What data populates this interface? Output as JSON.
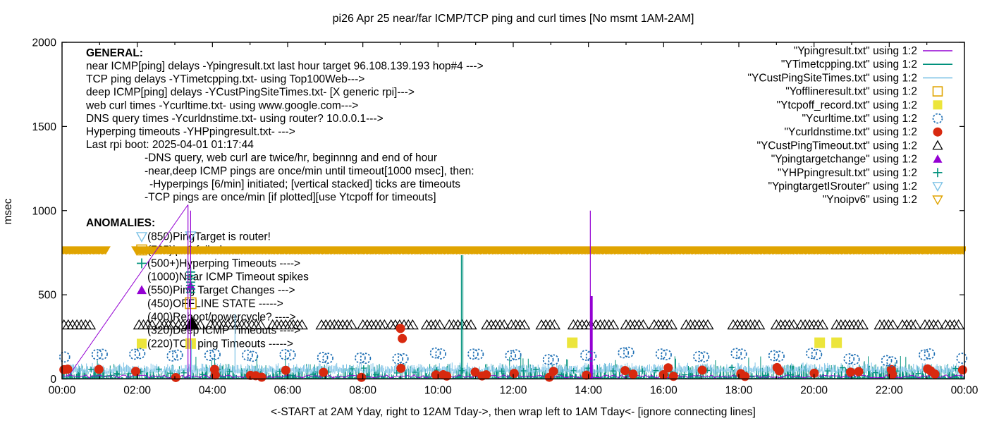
{
  "title": "pi26 Apr 25  near/far ICMP/TCP ping and curl times [No msmt 1AM-2AM]",
  "axis": {
    "ylabel": "msec",
    "xlabel": "<-START at 2AM Yday, right to 12AM Tday->, then wrap left to 1AM Tday<- [ignore connecting lines]",
    "y_ticks": [
      0,
      500,
      1000,
      1500,
      2000
    ],
    "x_tick_labels": [
      "00:00",
      "02:00",
      "04:00",
      "06:00",
      "08:00",
      "10:00",
      "12:00",
      "14:00",
      "16:00",
      "18:00",
      "20:00",
      "22:00",
      "00:00"
    ],
    "ylim": [
      0,
      2000
    ],
    "xlim_hours": [
      0,
      24
    ],
    "grid": false
  },
  "colors": {
    "purple": "#9400d3",
    "teal": "#00917c",
    "skyblue": "#7ec3e6",
    "orange": "#e0a400",
    "yellow": "#ece53b",
    "blue": "#1e6fb4",
    "red": "#d8290f",
    "black": "#000000"
  },
  "legend": {
    "position": "top-right",
    "items": [
      {
        "label": "\"Ypingresult.txt\" using 1:2",
        "marker": "line",
        "color": "purple"
      },
      {
        "label": "\"YTimetcpping.txt\" using 1:2",
        "marker": "line",
        "color": "teal"
      },
      {
        "label": "\"YCustPingSiteTimes.txt\" using 1:2",
        "marker": "line",
        "color": "skyblue"
      },
      {
        "label": "\"Yofflineresult.txt\" using 1:2",
        "marker": "square-open",
        "color": "orange"
      },
      {
        "label": "\"Ytcpoff_record.txt\" using 1:2",
        "marker": "square-fill",
        "color": "yellow"
      },
      {
        "label": "\"Ycurltime.txt\" using 1:2",
        "marker": "circle-open",
        "color": "blue"
      },
      {
        "label": "\"Ycurldnstime.txt\" using 1:2",
        "marker": "circle-fill",
        "color": "red"
      },
      {
        "label": "\"YCustPingTimeout.txt\" using 1:2",
        "marker": "triangle-open",
        "color": "black"
      },
      {
        "label": "\"Ypingtargetchange\" using 1:2",
        "marker": "triangle-fill",
        "color": "purple"
      },
      {
        "label": "\"YHPpingresult.txt\" using 1:2",
        "marker": "plus",
        "color": "teal"
      },
      {
        "label": "\"YpingtargetISrouter\" using 1:2",
        "marker": "tri-down-open",
        "color": "skyblue"
      },
      {
        "label": "\"Ynoipv6\" using 1:2",
        "marker": "tri-down-open",
        "color": "orange"
      }
    ]
  },
  "notes": {
    "general_title": "GENERAL:",
    "general": [
      {
        "text": "near ICMP[ping] delays -Ypingresult.txt last hour target 96.108.139.193 hop#4 --->",
        "indent": 0
      },
      {
        "text": "TCP ping delays -YTimetcpping.txt- using Top100Web--->",
        "indent": 0
      },
      {
        "text": "deep ICMP[ping] delays -YCustPingSiteTimes.txt- [X generic rpi]--->",
        "indent": 0
      },
      {
        "text": "web curl times -Ycurltime.txt- using www.google.com--->",
        "indent": 0
      },
      {
        "text": "DNS query times -Ycurldnstime.txt- using router? 10.0.0.1--->",
        "indent": 0
      },
      {
        "text": "Hyperping timeouts -YHPpingresult.txt- --->",
        "indent": 0
      },
      {
        "text": "Last rpi boot: 2025-04-01 01:17:44",
        "indent": 0
      },
      {
        "text": "-DNS query, web curl are twice/hr, beginnng and end of hour",
        "indent": 1
      },
      {
        "text": "-near,deep ICMP pings are once/min until timeout[1000 msec], then:",
        "indent": 1
      },
      {
        "text": "-Hyperpings [6/min] initiated; [vertical stacked] ticks are timeouts",
        "indent": 2
      },
      {
        "text": "-TCP pings are once/min [if plotted][use Ytcpoff for timeouts]",
        "indent": 1
      }
    ],
    "anomalies_title": "ANOMALIES:",
    "anomalies": [
      {
        "icon": "tri-down-open",
        "color": "skyblue",
        "text": "(850)PingTarget is router!"
      },
      {
        "icon": "square-open",
        "color": "orange",
        "text": "(765)ipv6 failed"
      },
      {
        "icon": "plus",
        "color": "teal",
        "text": "(500+)Hyperping Timeouts ---->"
      },
      {
        "icon": null,
        "color": null,
        "text": "(1000)Near ICMP Timeout spikes"
      },
      {
        "icon": "triangle-fill",
        "color": "purple",
        "text": "(550)Ping Target Changes --->"
      },
      {
        "icon": null,
        "color": null,
        "text": "(450)OFFLINE STATE ----->"
      },
      {
        "icon": null,
        "color": null,
        "text": "(400)Reboot/powercycle? ---->"
      },
      {
        "icon": null,
        "color": null,
        "text": "(320)Deep ICMP Timeouts ---->"
      },
      {
        "icon": "square-fill",
        "color": "yellow",
        "text": "(220)TCP ping Timeouts ----->"
      }
    ]
  },
  "chart_data": {
    "type": "scatter",
    "x_unit": "time of day (hours, 00:00-24:00)",
    "y_unit": "msec",
    "series": [
      {
        "name": "Ypingresult.txt",
        "desc": "near ICMP ping delays",
        "style": "line",
        "color": "purple",
        "baseline_range": [
          6,
          24
        ],
        "spikes": [
          {
            "x": 3.35,
            "y": 1035
          },
          {
            "x": 3.42,
            "y": 1000
          },
          {
            "x": 14.05,
            "y": 1000
          },
          {
            "x": 14.08,
            "y": 492,
            "thick": true
          }
        ],
        "connect_line": [
          [
            0.15,
            10
          ],
          [
            3.35,
            1035
          ]
        ]
      },
      {
        "name": "YTimetcpping.txt",
        "desc": "TCP ping delays",
        "style": "line",
        "color": "teal",
        "baseline_range": [
          5,
          90
        ],
        "spikes": [
          {
            "x": 10.62,
            "y": 735
          },
          {
            "x": 10.66,
            "y": 735
          }
        ],
        "connect_line": [
          [
            1.05,
            15
          ],
          [
            2.1,
            40
          ]
        ]
      },
      {
        "name": "YCustPingSiteTimes.txt",
        "desc": "deep ICMP ping delays",
        "style": "line",
        "color": "skyblue",
        "baseline_range": [
          28,
          95
        ],
        "spikes": [
          {
            "x": 3.44,
            "y": 230
          },
          {
            "x": 4.6,
            "y": 385
          }
        ]
      },
      {
        "name": "Yofflineresult.txt",
        "desc": "offline state",
        "style": "square-open",
        "color": "orange",
        "points": [
          {
            "x": 3.42,
            "y": 450
          }
        ]
      },
      {
        "name": "Ytcpoff_record.txt",
        "desc": "TCP ping timeouts",
        "style": "square-fill",
        "color": "yellow",
        "points": [
          {
            "x": 3.42,
            "y": 210
          },
          {
            "x": 13.57,
            "y": 215
          },
          {
            "x": 20.15,
            "y": 215
          },
          {
            "x": 20.6,
            "y": 215
          }
        ]
      },
      {
        "name": "Ycurltime.txt",
        "desc": "web curl times, twice per hour",
        "style": "circle-open",
        "color": "blue",
        "schedule": "twice/hr at begin+end of hour",
        "y_range": [
          105,
          155
        ],
        "outliers": []
      },
      {
        "name": "Ycurldnstime.txt",
        "desc": "DNS query times, twice per hour",
        "style": "circle-fill",
        "color": "red",
        "schedule": "twice/hr at begin+end of hour",
        "y_range": [
          8,
          68
        ],
        "outliers": [
          {
            "x": 9.0,
            "y": 300
          },
          {
            "x": 9.05,
            "y": 240
          }
        ]
      },
      {
        "name": "YCustPingTimeout.txt",
        "desc": "deep ICMP timeouts plotted at 320",
        "style": "triangle-open",
        "color": "black",
        "y": 320,
        "step_hours": 0.115,
        "clusters": [
          [
            0.05,
            0.8
          ],
          [
            2.05,
            2.5
          ],
          [
            2.6,
            3.05
          ],
          [
            3.1,
            3.7
          ],
          [
            3.95,
            4.45
          ],
          [
            4.55,
            4.95
          ],
          [
            5.05,
            5.35
          ],
          [
            5.6,
            6.1
          ],
          [
            6.15,
            6.45
          ],
          [
            6.9,
            7.3
          ],
          [
            7.35,
            7.7
          ],
          [
            8.0,
            8.6
          ],
          [
            8.75,
            9.4
          ],
          [
            9.7,
            10.15
          ],
          [
            10.3,
            10.9
          ],
          [
            11.3,
            11.85
          ],
          [
            11.95,
            12.4
          ],
          [
            12.75,
            13.2
          ],
          [
            13.6,
            14.1
          ],
          [
            14.2,
            14.7
          ],
          [
            15.0,
            15.5
          ],
          [
            15.75,
            16.3
          ],
          [
            16.6,
            17.2
          ],
          [
            17.85,
            18.55
          ],
          [
            19.0,
            19.5
          ],
          [
            19.65,
            20.3
          ],
          [
            20.6,
            21.3
          ],
          [
            21.75,
            22.2
          ],
          [
            22.35,
            22.8
          ],
          [
            22.95,
            23.4
          ],
          [
            23.5,
            23.95
          ]
        ]
      },
      {
        "name": "Ypingtargetchange",
        "desc": "ping target changes plotted at 550",
        "style": "triangle-fill",
        "color": "purple",
        "points": [
          {
            "x": 3.42,
            "y": 552
          }
        ]
      },
      {
        "name": "YHPpingresult.txt",
        "desc": "hyperping timeouts, vertical stacked ticks",
        "style": "plus",
        "color": "teal",
        "stack_x": 3.42,
        "stack_y": [
          515,
          535,
          555,
          575,
          595,
          615,
          635
        ],
        "scatter_y_range": [
          15,
          70
        ]
      },
      {
        "name": "YpingtargetISrouter",
        "desc": "ping target is router, plotted at 850",
        "style": "tri-down-open",
        "color": "skyblue",
        "points": [
          {
            "x": 3.42,
            "y": 850
          }
        ]
      },
      {
        "name": "Ynoipv6",
        "desc": "ipv6 failed band plotted at 765",
        "style": "band-tri-down-fill",
        "color": "orange",
        "y": 765,
        "segments": [
          [
            0,
            1.2
          ],
          [
            1.97,
            24
          ]
        ],
        "gap_reason": "No msmt 1AM-2AM"
      }
    ],
    "extras": {
      "reboot_marker": {
        "x": 3.45,
        "y": 330,
        "style": "triangle-fill",
        "color": "black",
        "size": 22
      }
    }
  }
}
